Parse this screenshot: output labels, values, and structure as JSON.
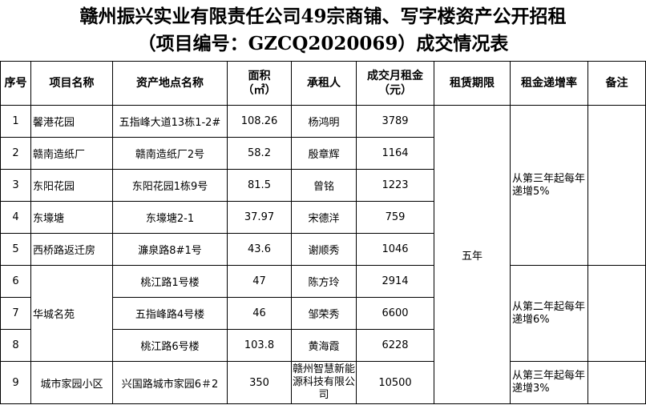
{
  "title": {
    "line1": "赣州振兴实业有限责任公司49宗商铺、写字楼资产公开招租",
    "line2": "（项目编号：GZCQ2020069）成交情况表"
  },
  "headers": [
    "序号",
    "项目名称",
    "资产地点名称",
    "面积\n（㎡）",
    "承租人",
    "成交月租金\n（元）",
    "租赁期限",
    "租金递增率",
    "备注"
  ],
  "rows": [
    {
      "no": "1",
      "project": "馨港花园",
      "location": "五指峰大道13栋1-2#",
      "area": "108.26",
      "tenant": "杨鸿明",
      "rent": "3789"
    },
    {
      "no": "2",
      "project": "赣南造纸厂",
      "location": "赣南造纸厂2号",
      "area": "58.2",
      "tenant": "殷章辉",
      "rent": "1164"
    },
    {
      "no": "3",
      "project": "东阳花园",
      "location": "东阳花园1栋9号",
      "area": "81.5",
      "tenant": "曾铭",
      "rent": "1223"
    },
    {
      "no": "4",
      "project": "东壕塘",
      "location": "东壕塘2-1",
      "area": "37.97",
      "tenant": "宋德洋",
      "rent": "759"
    },
    {
      "no": "5",
      "project": "西桥路返迁房",
      "location": "濂泉路8#1号",
      "area": "43.6",
      "tenant": "谢顺秀",
      "rent": "1046"
    },
    {
      "no": "6",
      "project": "华城名苑",
      "location": "桃江路1号楼",
      "area": "47",
      "tenant": "陈方玲",
      "rent": "2914"
    },
    {
      "no": "7",
      "location": "五指峰路4号楼",
      "area": "46",
      "tenant": "邹荣秀",
      "rent": "6600"
    },
    {
      "no": "8",
      "location": "桃江路6号楼",
      "area": "103.8",
      "tenant": "黄海霞",
      "rent": "6228"
    },
    {
      "no": "9",
      "project": "城市家园小区",
      "location": "兴国路城市家园6＃2",
      "area": "350",
      "tenant": "赣州智慧新能源科技有限公司",
      "rent": "10500"
    }
  ],
  "lease_term": "五年",
  "increase": [
    "从第三年起每年递增5%",
    "从第二年起每年递增6%",
    "从第三年起每年递增3%"
  ]
}
